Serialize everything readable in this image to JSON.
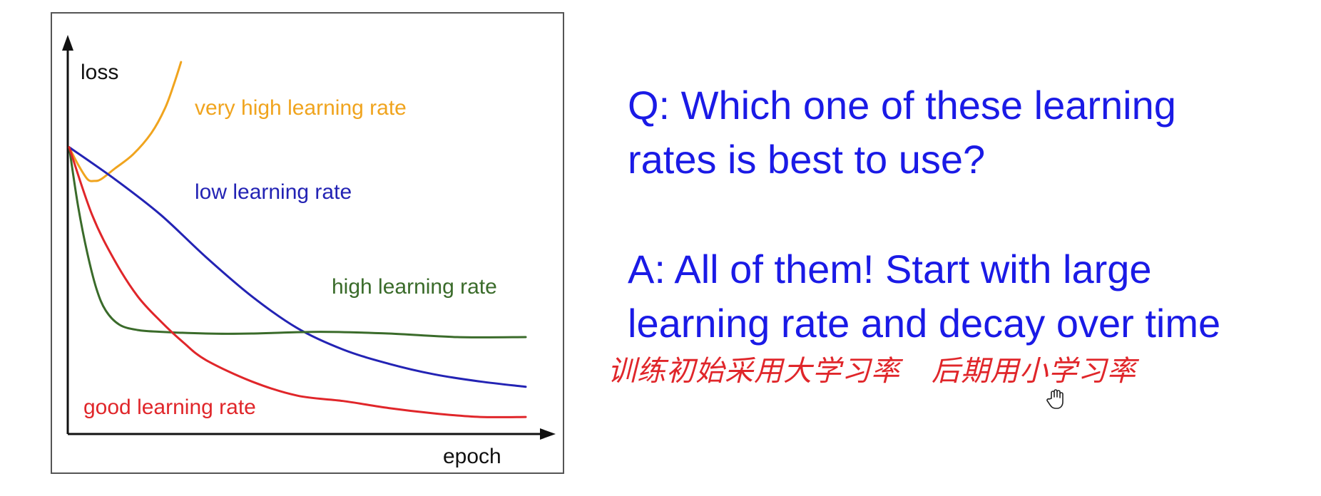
{
  "chart_data": {
    "type": "line",
    "xlabel": "epoch",
    "ylabel": "loss",
    "xlim": [
      0,
      100
    ],
    "ylim": [
      0,
      100
    ],
    "grid": false,
    "series": [
      {
        "name": "very high learning rate",
        "color": "#f0a41e",
        "x": [
          0,
          2,
          4,
          5.5,
          7,
          10,
          14,
          18,
          21,
          23,
          24.5
        ],
        "y": [
          80,
          75,
          71,
          70.5,
          71,
          74,
          78,
          84,
          91,
          98,
          104
        ]
      },
      {
        "name": "low learning rate",
        "color": "#2323b4",
        "x": [
          0,
          10,
          20,
          30,
          40,
          50,
          60,
          70,
          80,
          90,
          100
        ],
        "y": [
          80,
          71,
          61,
          49,
          38,
          29,
          23,
          19,
          16,
          14,
          12.5
        ]
      },
      {
        "name": "high learning rate",
        "color": "#3a6b2a",
        "x": [
          0,
          2,
          4,
          6,
          8,
          11,
          15,
          20,
          30,
          40,
          55,
          70,
          85,
          100
        ],
        "y": [
          80,
          63,
          50,
          40,
          34,
          30,
          28.5,
          28,
          27.5,
          27.5,
          28,
          27.5,
          26.5,
          26.5
        ]
      },
      {
        "name": "good learning rate",
        "color": "#e0262a",
        "x": [
          0,
          5,
          10,
          15,
          20,
          25,
          30,
          40,
          50,
          60,
          70,
          80,
          90,
          100
        ],
        "y": [
          80,
          61,
          48,
          38,
          31,
          25,
          20,
          14,
          10,
          8.5,
          6.5,
          5,
          4,
          4
        ]
      }
    ]
  },
  "question_lines": [
    "Q: Which one of these learning",
    "rates is best to use?"
  ],
  "answer_lines": [
    "A: All of them! Start with large",
    "learning rate and decay over time"
  ],
  "handwritten_note": [
    "训练初始采用大学习率",
    "后期用小学习率"
  ],
  "colors": {
    "slide_text": "#1a1ae6",
    "handwriting": "#e0262a",
    "axis": "#111111"
  },
  "icons": {
    "cursor": "hand-cursor-icon"
  }
}
